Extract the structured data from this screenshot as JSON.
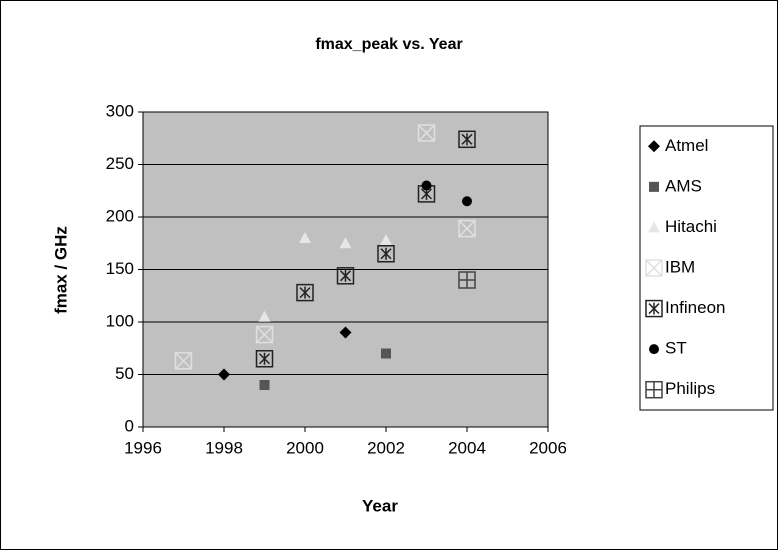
{
  "chart_data": {
    "type": "scatter",
    "title": "fmax_peak vs. Year",
    "xlabel": "Year",
    "ylabel": "fmax / GHz",
    "xlim": [
      1996,
      2006
    ],
    "xticks": [
      1996,
      1998,
      2000,
      2002,
      2004,
      2006
    ],
    "ylim": [
      0,
      300
    ],
    "yticks": [
      0,
      50,
      100,
      150,
      200,
      250,
      300
    ],
    "grid": true,
    "legend": "right",
    "series": [
      {
        "name": "Atmel",
        "color": "#000000",
        "marker": "diamond",
        "x": [
          1998,
          2001
        ],
        "values": [
          50,
          90
        ]
      },
      {
        "name": "AMS",
        "color": "#555555",
        "marker": "square",
        "x": [
          1999,
          2002
        ],
        "values": [
          40,
          70
        ]
      },
      {
        "name": "Hitachi",
        "color": "#e6e6e6",
        "marker": "triangle",
        "x": [
          1999,
          2000,
          2001,
          2002
        ],
        "values": [
          105,
          180,
          175,
          178
        ]
      },
      {
        "name": "IBM",
        "color": "#e0e0e0",
        "marker": "square-x",
        "x": [
          1997,
          1999,
          2003,
          2004
        ],
        "values": [
          63,
          88,
          280,
          189
        ]
      },
      {
        "name": "Infineon",
        "color": "#222222",
        "marker": "square-star",
        "x": [
          1999,
          2000,
          2001,
          2002,
          2003,
          2004
        ],
        "values": [
          65,
          128,
          144,
          165,
          222,
          274
        ]
      },
      {
        "name": "ST",
        "color": "#000000",
        "marker": "circle",
        "x": [
          2003,
          2004
        ],
        "values": [
          230,
          215
        ]
      },
      {
        "name": "Philips",
        "color": "#444444",
        "marker": "square-plus",
        "x": [
          2004
        ],
        "values": [
          140
        ]
      }
    ]
  }
}
